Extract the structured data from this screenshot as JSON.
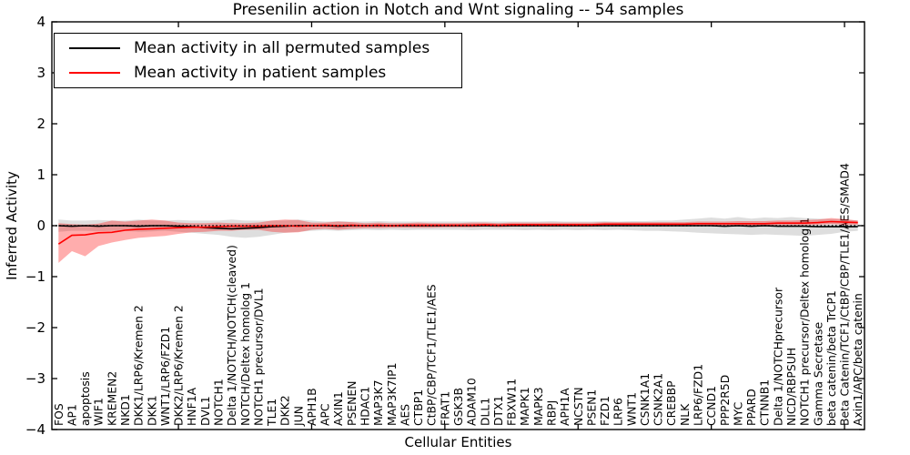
{
  "chart_data": {
    "type": "line",
    "title": "Presenilin action in Notch and Wnt signaling -- 54 samples",
    "xlabel": "Cellular Entities",
    "ylabel": "Inferred Activity",
    "ylim": [
      -4,
      4
    ],
    "yticks": [
      4,
      3,
      2,
      1,
      0,
      -1,
      -2,
      -3,
      -4
    ],
    "xticks_major": [
      10,
      20,
      30,
      40,
      50,
      60
    ],
    "grid": false,
    "legend_position": "upper left",
    "zero_reference_line": "dotted black at y=0",
    "x_tick_label_rotation": 90,
    "categories": [
      "FOS",
      "AP1",
      "apoptosis",
      "WIF1",
      "KREMEN2",
      "NKD1",
      "DKK1/LRP6/Kremen 2",
      "DKK1",
      "WNT1/LRP6/FZD1",
      "DKK2/LRP6/Kremen 2",
      "HNF1A",
      "DVL1",
      "NOTCH1",
      "Delta 1/NOTCH/NOTCH(cleaved)",
      "NOTCH/Deltex homolog 1",
      "NOTCH1 precursor/DVL1",
      "TLE1",
      "DKK2",
      "JUN",
      "APH1B",
      "APC",
      "AXIN1",
      "PSENEN",
      "HDAC1",
      "MAP3K7",
      "MAP3K7IP1",
      "AES",
      "CTBP1",
      "CtBP/CBP/TCF1/TLE1/AES",
      "FRAT1",
      "GSK3B",
      "ADAM10",
      "DLL1",
      "DTX1",
      "FBXW11",
      "MAPK1",
      "MAPK3",
      "RBPJ",
      "APH1A",
      "NCSTN",
      "PSEN1",
      "FZD1",
      "LRP6",
      "WNT1",
      "CSNK1A1",
      "CSNK2A1",
      "CREBBP",
      "NLK",
      "LRP6/FZD1",
      "CCND1",
      "PPP2R5D",
      "MYC",
      "PPARD",
      "CTNNB1",
      "Delta 1/NOTCHprecursor",
      "NICD/RBPSUH",
      "NOTCH1 precursor/Deltex homolog 1",
      "Gamma Secretase",
      "beta catenin/beta TrCP1",
      "Beta Catenin/TCF1/CtBP/CBP/TLE1/AES/SMAD4",
      "Axin1/APC/beta catenin"
    ],
    "series": [
      {
        "name": "Mean activity in all permuted samples",
        "color": "#000000",
        "band_color": "rgba(0,0,0,0.13)",
        "values": [
          0,
          -0.01,
          0,
          -0.01,
          0,
          0,
          -0.01,
          0,
          0,
          -0.01,
          -0.02,
          -0.04,
          -0.05,
          -0.06,
          -0.05,
          -0.04,
          -0.02,
          -0.01,
          0,
          0,
          0,
          -0.01,
          0,
          0,
          0,
          0,
          0,
          0,
          0,
          0,
          0,
          0,
          0,
          0,
          0,
          0,
          0,
          0,
          0,
          0,
          0,
          0,
          0,
          0,
          0,
          0,
          0,
          0,
          0,
          0,
          -0.01,
          0,
          -0.01,
          0,
          -0.01,
          -0.01,
          -0.01,
          -0.02,
          -0.02,
          -0.02,
          -0.02
        ],
        "band_upper": [
          0.12,
          0.1,
          0.1,
          0.11,
          0.1,
          0.1,
          0.12,
          0.1,
          0.1,
          0.11,
          0.1,
          0.1,
          0.1,
          0.12,
          0.1,
          0.1,
          0.1,
          0.1,
          0.12,
          0.1,
          0.08,
          0.09,
          0.08,
          0.08,
          0.09,
          0.08,
          0.08,
          0.08,
          0.08,
          0.08,
          0.08,
          0.08,
          0.08,
          0.08,
          0.08,
          0.08,
          0.08,
          0.09,
          0.08,
          0.08,
          0.08,
          0.09,
          0.08,
          0.09,
          0.09,
          0.1,
          0.1,
          0.12,
          0.14,
          0.16,
          0.14,
          0.17,
          0.14,
          0.16,
          0.15,
          0.17,
          0.15,
          0.14,
          0.13,
          0.12,
          0.1
        ],
        "band_lower": [
          -0.12,
          -0.1,
          -0.1,
          -0.11,
          -0.1,
          -0.1,
          -0.12,
          -0.11,
          -0.1,
          -0.12,
          -0.14,
          -0.16,
          -0.18,
          -0.22,
          -0.24,
          -0.22,
          -0.18,
          -0.14,
          -0.12,
          -0.1,
          -0.09,
          -0.1,
          -0.09,
          -0.08,
          -0.09,
          -0.08,
          -0.09,
          -0.08,
          -0.08,
          -0.08,
          -0.08,
          -0.09,
          -0.08,
          -0.08,
          -0.08,
          -0.09,
          -0.08,
          -0.09,
          -0.08,
          -0.09,
          -0.08,
          -0.09,
          -0.08,
          -0.09,
          -0.1,
          -0.1,
          -0.11,
          -0.12,
          -0.14,
          -0.15,
          -0.16,
          -0.17,
          -0.18,
          -0.17,
          -0.18,
          -0.19,
          -0.2,
          -0.18,
          -0.16,
          -0.12,
          -0.1
        ]
      },
      {
        "name": "Mean activity in patient samples",
        "color": "#ff0000",
        "band_color": "rgba(255,0,0,0.32)",
        "values": [
          -0.36,
          -0.19,
          -0.18,
          -0.14,
          -0.13,
          -0.09,
          -0.07,
          -0.06,
          -0.05,
          -0.04,
          -0.03,
          -0.03,
          -0.02,
          -0.01,
          -0.01,
          -0.01,
          0,
          0,
          -0.01,
          0,
          0.01,
          0,
          0.01,
          0,
          0.01,
          0,
          0.01,
          0.01,
          0.01,
          0.01,
          0.01,
          0.01,
          0.02,
          0.01,
          0.02,
          0.02,
          0.02,
          0.02,
          0.02,
          0.02,
          0.02,
          0.03,
          0.03,
          0.03,
          0.03,
          0.03,
          0.03,
          0.03,
          0.04,
          0.04,
          0.04,
          0.04,
          0.04,
          0.04,
          0.05,
          0.05,
          0.05,
          0.06,
          0.08,
          0.07,
          0.06
        ],
        "band_upper": [
          0.05,
          0.03,
          0.02,
          0.04,
          0.1,
          0.08,
          0.1,
          0.12,
          0.1,
          0.06,
          0.05,
          0.05,
          0.06,
          0.05,
          0.05,
          0.06,
          0.1,
          0.12,
          0.11,
          0.06,
          0.06,
          0.08,
          0.07,
          0.05,
          0.06,
          0.05,
          0.05,
          0.06,
          0.05,
          0.05,
          0.05,
          0.06,
          0.06,
          0.05,
          0.06,
          0.06,
          0.06,
          0.06,
          0.06,
          0.06,
          0.06,
          0.07,
          0.07,
          0.07,
          0.07,
          0.07,
          0.07,
          0.07,
          0.08,
          0.08,
          0.08,
          0.09,
          0.09,
          0.09,
          0.1,
          0.1,
          0.11,
          0.12,
          0.15,
          0.13,
          0.1
        ],
        "band_lower": [
          -0.73,
          -0.5,
          -0.6,
          -0.4,
          -0.33,
          -0.28,
          -0.24,
          -0.22,
          -0.2,
          -0.16,
          -0.13,
          -0.12,
          -0.1,
          -0.1,
          -0.08,
          -0.08,
          -0.12,
          -0.14,
          -0.13,
          -0.08,
          -0.06,
          -0.08,
          -0.06,
          -0.05,
          -0.05,
          -0.04,
          -0.04,
          -0.04,
          -0.04,
          -0.03,
          -0.03,
          -0.03,
          -0.02,
          -0.03,
          -0.02,
          -0.02,
          -0.02,
          -0.02,
          -0.02,
          -0.02,
          -0.02,
          -0.01,
          -0.01,
          -0.01,
          -0.01,
          -0.01,
          -0.01,
          -0.01,
          0,
          0,
          0,
          0,
          0,
          0,
          0.01,
          0.01,
          0.01,
          0.02,
          0.03,
          0.02,
          0.02
        ]
      }
    ]
  }
}
